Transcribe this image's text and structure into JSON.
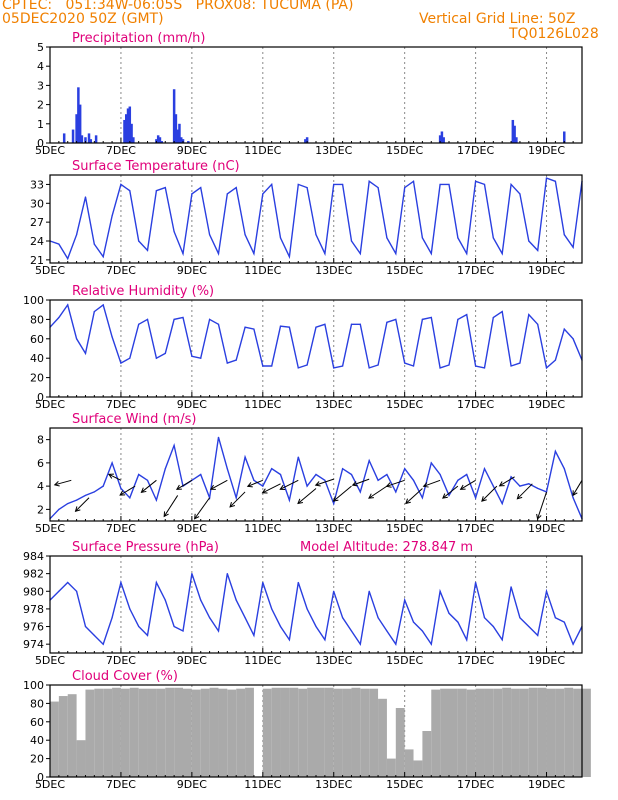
{
  "header": {
    "line1": "CPTEC:   051:34W-06:05S   PROX08: TUCUMA (PA)",
    "line2": "05DEC2020 50Z (GMT)",
    "grid_note": "Vertical Grid Line: 50Z",
    "code": "TQ0126L028"
  },
  "colors": {
    "line": "#2a3fe0",
    "header": "#f08000",
    "title": "#e0007a",
    "cloud": "#aaaaaa",
    "wind_arrow": "#000000"
  },
  "x_ticks": [
    "5DEC",
    "7DEC",
    "9DEC",
    "11DEC",
    "13DEC",
    "15DEC",
    "17DEC",
    "19DEC"
  ],
  "x_range_days": [
    5,
    20
  ],
  "chart_data": [
    {
      "type": "bar",
      "title": "Precipitation (mm/h)",
      "ylim": [
        0,
        5
      ],
      "yticks": [
        0,
        1,
        2,
        3,
        4,
        5
      ],
      "x": [
        5.4,
        5.65,
        5.75,
        5.8,
        5.85,
        5.9,
        6.0,
        6.1,
        6.15,
        6.3,
        7.1,
        7.15,
        7.2,
        7.25,
        7.3,
        7.35,
        8.0,
        8.05,
        8.1,
        8.15,
        8.5,
        8.55,
        8.6,
        8.65,
        8.7,
        8.75,
        8.9,
        12.2,
        12.25,
        16.0,
        16.05,
        16.1,
        18.05,
        18.1,
        18.15,
        19.5
      ],
      "values": [
        0.5,
        0.7,
        1.5,
        2.9,
        2.0,
        0.4,
        0.3,
        0.5,
        0.2,
        0.4,
        1.2,
        1.5,
        1.8,
        1.9,
        1.0,
        0.3,
        0.2,
        0.4,
        0.3,
        0.1,
        2.8,
        1.5,
        0.7,
        1.0,
        0.3,
        0.2,
        0.1,
        0.2,
        0.3,
        0.4,
        0.6,
        0.3,
        1.2,
        0.9,
        0.3,
        0.6
      ]
    },
    {
      "type": "line",
      "title": "Surface Temperature (nC)",
      "ylim": [
        20.5,
        34.5
      ],
      "yticks": [
        21,
        24,
        27,
        30,
        33
      ],
      "x": [
        5.0,
        5.25,
        5.5,
        5.75,
        6.0,
        6.25,
        6.5,
        6.75,
        7.0,
        7.25,
        7.5,
        7.75,
        8.0,
        8.25,
        8.5,
        8.75,
        9.0,
        9.25,
        9.5,
        9.75,
        10.0,
        10.25,
        10.5,
        10.75,
        11.0,
        11.25,
        11.5,
        11.75,
        12.0,
        12.25,
        12.5,
        12.75,
        13.0,
        13.25,
        13.5,
        13.75,
        14.0,
        14.25,
        14.5,
        14.75,
        15.0,
        15.25,
        15.5,
        15.75,
        16.0,
        16.25,
        16.5,
        16.75,
        17.0,
        17.25,
        17.5,
        17.75,
        18.0,
        18.25,
        18.5,
        18.75,
        19.0,
        19.25,
        19.5,
        19.75,
        20.0
      ],
      "values": [
        24.0,
        23.5,
        21.2,
        25.0,
        31.0,
        23.5,
        21.5,
        28.0,
        33.0,
        32.0,
        24.0,
        22.5,
        32.0,
        32.5,
        25.5,
        22.0,
        31.5,
        32.5,
        25.0,
        22.0,
        31.5,
        32.5,
        25.0,
        22.0,
        31.5,
        33.0,
        24.5,
        21.5,
        33.0,
        32.5,
        25.0,
        22.0,
        33.0,
        33.0,
        24.0,
        22.0,
        33.5,
        32.5,
        24.5,
        22.0,
        32.5,
        33.5,
        24.5,
        22.0,
        33.0,
        33.0,
        24.5,
        22.0,
        33.5,
        33.0,
        24.5,
        22.0,
        33.0,
        31.5,
        24.0,
        22.5,
        34.0,
        33.5,
        25.0,
        23.0,
        33.5
      ]
    },
    {
      "type": "line",
      "title": "Relative Humidity (%)",
      "ylim": [
        0,
        100
      ],
      "yticks": [
        0,
        20,
        40,
        60,
        80,
        100
      ],
      "x": [
        5.0,
        5.25,
        5.5,
        5.75,
        6.0,
        6.25,
        6.5,
        6.75,
        7.0,
        7.25,
        7.5,
        7.75,
        8.0,
        8.25,
        8.5,
        8.75,
        9.0,
        9.25,
        9.5,
        9.75,
        10.0,
        10.25,
        10.5,
        10.75,
        11.0,
        11.25,
        11.5,
        11.75,
        12.0,
        12.25,
        12.5,
        12.75,
        13.0,
        13.25,
        13.5,
        13.75,
        14.0,
        14.25,
        14.5,
        14.75,
        15.0,
        15.25,
        15.5,
        15.75,
        16.0,
        16.25,
        16.5,
        16.75,
        17.0,
        17.25,
        17.5,
        17.75,
        18.0,
        18.25,
        18.5,
        18.75,
        19.0,
        19.25,
        19.5,
        19.75,
        20.0
      ],
      "values": [
        72,
        82,
        95,
        60,
        45,
        88,
        95,
        62,
        35,
        40,
        75,
        80,
        40,
        45,
        80,
        82,
        42,
        40,
        80,
        75,
        35,
        38,
        72,
        70,
        32,
        32,
        73,
        72,
        30,
        33,
        72,
        75,
        30,
        32,
        75,
        75,
        30,
        33,
        77,
        80,
        35,
        32,
        80,
        82,
        30,
        33,
        80,
        85,
        32,
        30,
        82,
        88,
        32,
        35,
        85,
        75,
        30,
        38,
        70,
        60,
        38
      ]
    },
    {
      "type": "line",
      "title": "Surface Wind (m/s)",
      "ylim": [
        1,
        9
      ],
      "yticks": [
        2,
        4,
        6,
        8
      ],
      "x": [
        5.0,
        5.25,
        5.5,
        5.75,
        6.0,
        6.25,
        6.5,
        6.75,
        7.0,
        7.25,
        7.5,
        7.75,
        8.0,
        8.25,
        8.5,
        8.75,
        9.0,
        9.25,
        9.5,
        9.75,
        10.0,
        10.25,
        10.5,
        10.75,
        11.0,
        11.25,
        11.5,
        11.75,
        12.0,
        12.25,
        12.5,
        12.75,
        13.0,
        13.25,
        13.5,
        13.75,
        14.0,
        14.25,
        14.5,
        14.75,
        15.0,
        15.25,
        15.5,
        15.75,
        16.0,
        16.25,
        16.5,
        16.75,
        17.0,
        17.25,
        17.5,
        17.75,
        18.0,
        18.25,
        18.5,
        18.75,
        19.0,
        19.25,
        19.5,
        19.75,
        20.0
      ],
      "values": [
        1.2,
        2.0,
        2.5,
        2.8,
        3.2,
        3.5,
        4.0,
        6.0,
        3.8,
        3.0,
        5.0,
        4.5,
        2.8,
        5.5,
        7.5,
        4.0,
        4.5,
        5.0,
        3.0,
        8.2,
        5.5,
        3.0,
        6.5,
        4.5,
        4.0,
        5.5,
        5.0,
        2.8,
        6.5,
        4.0,
        5.0,
        4.5,
        2.5,
        5.5,
        5.0,
        3.5,
        6.2,
        4.5,
        5.0,
        3.5,
        5.5,
        4.5,
        3.0,
        6.0,
        5.0,
        3.2,
        4.5,
        5.0,
        3.0,
        5.5,
        4.0,
        2.5,
        4.8,
        4.0,
        4.2,
        3.8,
        3.5,
        7.0,
        5.5,
        3.0,
        1.2
      ],
      "vectors": [
        {
          "x": 5.6,
          "y": 4.5,
          "u": 0.55,
          "v": 0.15
        },
        {
          "x": 6.1,
          "y": 3.0,
          "u": 0.45,
          "v": 0.45
        },
        {
          "x": 7.0,
          "y": 4.5,
          "u": 0.4,
          "v": -0.2
        },
        {
          "x": 7.4,
          "y": 4.0,
          "u": 0.5,
          "v": 0.3
        },
        {
          "x": 8.0,
          "y": 4.5,
          "u": 0.5,
          "v": 0.4
        },
        {
          "x": 8.6,
          "y": 3.2,
          "u": 0.45,
          "v": 0.7
        },
        {
          "x": 9.0,
          "y": 4.5,
          "u": 0.5,
          "v": 0.3
        },
        {
          "x": 9.5,
          "y": 3.0,
          "u": 0.5,
          "v": 0.7
        },
        {
          "x": 10.0,
          "y": 4.5,
          "u": 0.55,
          "v": 0.3
        },
        {
          "x": 10.5,
          "y": 3.5,
          "u": 0.5,
          "v": 0.5
        },
        {
          "x": 11.0,
          "y": 4.5,
          "u": 0.5,
          "v": 0.2
        },
        {
          "x": 11.5,
          "y": 4.2,
          "u": 0.6,
          "v": 0.3
        },
        {
          "x": 12.0,
          "y": 4.5,
          "u": 0.6,
          "v": 0.3
        },
        {
          "x": 12.5,
          "y": 3.8,
          "u": 0.6,
          "v": 0.5
        },
        {
          "x": 13.0,
          "y": 4.6,
          "u": 0.6,
          "v": 0.2
        },
        {
          "x": 13.5,
          "y": 4.0,
          "u": 0.6,
          "v": 0.5
        },
        {
          "x": 14.0,
          "y": 4.6,
          "u": 0.55,
          "v": 0.2
        },
        {
          "x": 14.5,
          "y": 4.0,
          "u": 0.6,
          "v": 0.4
        },
        {
          "x": 15.0,
          "y": 4.5,
          "u": 0.6,
          "v": 0.2
        },
        {
          "x": 15.5,
          "y": 3.8,
          "u": 0.55,
          "v": 0.5
        },
        {
          "x": 16.0,
          "y": 4.5,
          "u": 0.55,
          "v": 0.2
        },
        {
          "x": 16.5,
          "y": 4.0,
          "u": 0.5,
          "v": 0.4
        },
        {
          "x": 17.0,
          "y": 4.5,
          "u": 0.5,
          "v": 0.3
        },
        {
          "x": 17.6,
          "y": 4.0,
          "u": 0.5,
          "v": 0.5
        },
        {
          "x": 18.1,
          "y": 4.8,
          "u": 0.5,
          "v": 0.3
        },
        {
          "x": 18.6,
          "y": 4.2,
          "u": 0.5,
          "v": 0.5
        },
        {
          "x": 19.0,
          "y": 3.5,
          "u": 0.3,
          "v": 0.9
        },
        {
          "x": 20.0,
          "y": 4.5,
          "u": 0.3,
          "v": 0.5
        }
      ]
    },
    {
      "type": "line",
      "title": "Surface Pressure (hPa)",
      "annotation": "Model Altitude: 278.847 m",
      "ylim": [
        973,
        984
      ],
      "yticks": [
        974,
        976,
        978,
        980,
        982,
        984
      ],
      "x": [
        5.0,
        5.25,
        5.5,
        5.75,
        6.0,
        6.25,
        6.5,
        6.75,
        7.0,
        7.25,
        7.5,
        7.75,
        8.0,
        8.25,
        8.5,
        8.75,
        9.0,
        9.25,
        9.5,
        9.75,
        10.0,
        10.25,
        10.5,
        10.75,
        11.0,
        11.25,
        11.5,
        11.75,
        12.0,
        12.25,
        12.5,
        12.75,
        13.0,
        13.25,
        13.5,
        13.75,
        14.0,
        14.25,
        14.5,
        14.75,
        15.0,
        15.25,
        15.5,
        15.75,
        16.0,
        16.25,
        16.5,
        16.75,
        17.0,
        17.25,
        17.5,
        17.75,
        18.0,
        18.25,
        18.5,
        18.75,
        19.0,
        19.25,
        19.5,
        19.75,
        20.0
      ],
      "values": [
        979,
        980,
        981,
        980,
        976,
        975,
        974,
        977,
        981,
        978,
        976,
        975,
        981,
        979,
        976,
        975.5,
        982,
        979,
        977,
        975.5,
        982,
        979,
        977,
        975,
        981,
        978,
        976,
        974.5,
        981,
        978,
        976,
        974.5,
        980,
        977,
        975.5,
        974,
        980,
        977,
        975.5,
        974,
        979,
        976.5,
        975.5,
        974,
        980,
        977.5,
        976.5,
        974.5,
        981,
        977,
        976,
        974.5,
        980.5,
        977,
        976,
        975,
        980,
        977,
        976.5,
        974,
        976
      ]
    },
    {
      "type": "bar",
      "title": "Cloud Cover (%)",
      "ylim": [
        0,
        100
      ],
      "yticks": [
        0,
        20,
        40,
        60,
        80,
        100
      ],
      "x": [
        5.0,
        5.25,
        5.5,
        5.75,
        6.0,
        6.25,
        6.5,
        6.75,
        7.0,
        7.25,
        7.5,
        7.75,
        8.0,
        8.25,
        8.5,
        8.75,
        9.0,
        9.25,
        9.5,
        9.75,
        10.0,
        10.25,
        10.5,
        10.75,
        11.0,
        11.25,
        11.5,
        11.75,
        12.0,
        12.25,
        12.5,
        12.75,
        13.0,
        13.25,
        13.5,
        13.75,
        14.0,
        14.25,
        14.5,
        14.75,
        15.0,
        15.25,
        15.5,
        15.75,
        16.0,
        16.25,
        16.5,
        16.75,
        17.0,
        17.25,
        17.5,
        17.75,
        18.0,
        18.25,
        18.5,
        18.75,
        19.0,
        19.25,
        19.5,
        19.75,
        20.0
      ],
      "values": [
        82,
        88,
        90,
        40,
        95,
        96,
        96,
        97,
        96,
        97,
        96,
        96,
        96,
        97,
        97,
        96,
        95,
        96,
        97,
        96,
        95,
        96,
        97,
        0,
        96,
        97,
        97,
        97,
        96,
        97,
        97,
        97,
        96,
        96,
        97,
        96,
        96,
        85,
        20,
        75,
        30,
        18,
        50,
        95,
        96,
        96,
        96,
        95,
        96,
        96,
        96,
        97,
        96,
        96,
        97,
        97,
        96,
        96,
        97,
        96,
        96
      ]
    }
  ]
}
